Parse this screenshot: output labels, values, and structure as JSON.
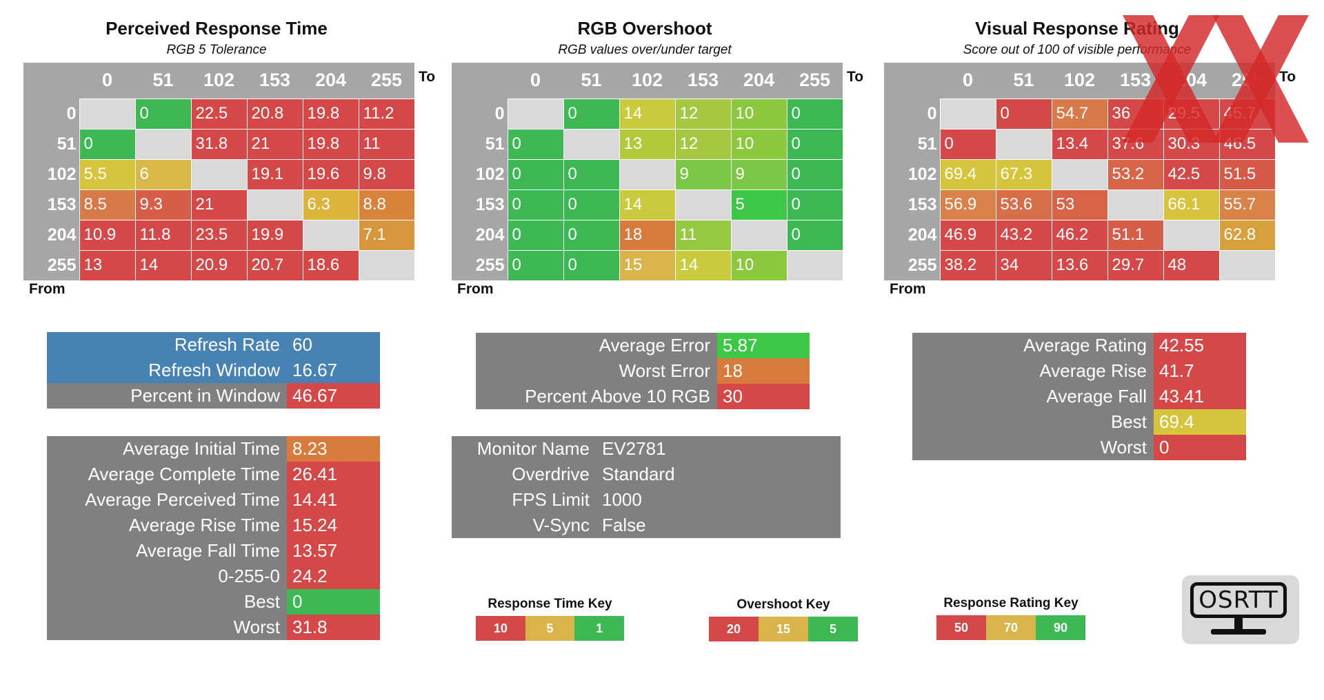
{
  "chart_data": [
    {
      "type": "heatmap",
      "title": "Perceived Response Time",
      "subtitle": "RGB 5 Tolerance",
      "to_label": "To",
      "from_label": "From",
      "levels": [
        "0",
        "51",
        "102",
        "153",
        "204",
        "255"
      ],
      "matrix": [
        [
          null,
          "0",
          "22.5",
          "20.8",
          "19.8",
          "11.2"
        ],
        [
          "0",
          null,
          "31.8",
          "21",
          "19.8",
          "11"
        ],
        [
          "5.5",
          "6",
          null,
          "19.1",
          "19.6",
          "9.8"
        ],
        [
          "8.5",
          "9.3",
          "21",
          null,
          "6.3",
          "8.8"
        ],
        [
          "10.9",
          "11.8",
          "23.5",
          "19.9",
          null,
          "7.1"
        ],
        [
          "13",
          "14",
          "20.9",
          "20.7",
          "18.6",
          null
        ]
      ],
      "colors": [
        [
          null,
          "#3cb955",
          "#d64848",
          "#d64848",
          "#d64848",
          "#d64848"
        ],
        [
          "#3cb955",
          null,
          "#d64848",
          "#d64848",
          "#d64848",
          "#d64848"
        ],
        [
          "#d6c43c",
          "#d8b848",
          null,
          "#d64848",
          "#d64848",
          "#d64848"
        ],
        [
          "#d87a48",
          "#d65e48",
          "#d64848",
          null,
          "#dcb43c",
          "#d8823c"
        ],
        [
          "#d64848",
          "#d64848",
          "#d64848",
          "#d64848",
          null,
          "#d8963c"
        ],
        [
          "#d64848",
          "#d64848",
          "#d64848",
          "#d64848",
          "#d64848",
          null
        ]
      ]
    },
    {
      "type": "heatmap",
      "title": "RGB Overshoot",
      "subtitle": "RGB values over/under target",
      "to_label": "To",
      "from_label": "From",
      "levels": [
        "0",
        "51",
        "102",
        "153",
        "204",
        "255"
      ],
      "matrix": [
        [
          null,
          "0",
          "14",
          "12",
          "10",
          "0"
        ],
        [
          "0",
          null,
          "13",
          "12",
          "10",
          "0"
        ],
        [
          "0",
          "0",
          null,
          "9",
          "9",
          "0"
        ],
        [
          "0",
          "0",
          "14",
          null,
          "5",
          "0"
        ],
        [
          "0",
          "0",
          "18",
          "11",
          null,
          "0"
        ],
        [
          "0",
          "0",
          "15",
          "14",
          "10",
          null
        ]
      ],
      "colors": [
        [
          null,
          "#3cb955",
          "#c8cc3c",
          "#a4c841",
          "#8ac83c",
          "#3cb955"
        ],
        [
          "#3cb955",
          null,
          "#b4c83c",
          "#a4c841",
          "#8ac83c",
          "#3cb955"
        ],
        [
          "#3cb955",
          "#3cb955",
          null,
          "#7cc846",
          "#7cc846",
          "#3cb955"
        ],
        [
          "#3cb955",
          "#3cb955",
          "#c8cc3c",
          null,
          "#3cc846",
          "#3cb955"
        ],
        [
          "#3cb955",
          "#3cb955",
          "#d87a3c",
          "#96c841",
          null,
          "#3cb955"
        ],
        [
          "#3cb955",
          "#3cb955",
          "#d8b44a",
          "#c8cc3c",
          "#8ac83c",
          null
        ]
      ]
    },
    {
      "type": "heatmap",
      "title": "Visual Response Rating",
      "subtitle": "Score out of 100 of visible performance",
      "to_label": "To",
      "from_label": "From",
      "levels": [
        "0",
        "51",
        "102",
        "153",
        "204",
        "255"
      ],
      "matrix": [
        [
          null,
          "0",
          "54.7",
          "36",
          "29.5",
          "45.7"
        ],
        [
          "0",
          null,
          "13.4",
          "37.6",
          "30.3",
          "46.5"
        ],
        [
          "69.4",
          "67.3",
          null,
          "53.2",
          "42.5",
          "51.5"
        ],
        [
          "56.9",
          "53.6",
          "53",
          null,
          "66.1",
          "55.7"
        ],
        [
          "46.9",
          "43.2",
          "46.2",
          "51.1",
          null,
          "62.8"
        ],
        [
          "38.2",
          "34",
          "13.6",
          "29.7",
          "48",
          null
        ]
      ],
      "colors": [
        [
          null,
          "#d64848",
          "#d87a48",
          "#d64848",
          "#d64848",
          "#d64848"
        ],
        [
          "#d64848",
          null,
          "#d64848",
          "#d64848",
          "#d64848",
          "#d64848"
        ],
        [
          "#d6c43c",
          "#d6c43c",
          null,
          "#d86448",
          "#d64848",
          "#d65a48"
        ],
        [
          "#d8824a",
          "#d86e48",
          "#d86448",
          null,
          "#d8c43c",
          "#d88248"
        ],
        [
          "#d64848",
          "#d64848",
          "#d64848",
          "#d65e48",
          null,
          "#d8a03c"
        ],
        [
          "#d64848",
          "#d64848",
          "#d64848",
          "#d64848",
          "#d64848",
          null
        ]
      ]
    }
  ],
  "refresh": {
    "rows": [
      {
        "label": "Refresh Rate",
        "value": "60",
        "label_color": "#4682b4",
        "value_color": "#4682b4"
      },
      {
        "label": "Refresh Window",
        "value": "16.67",
        "label_color": "#4682b4",
        "value_color": "#4682b4"
      },
      {
        "label": "Percent in Window",
        "value": "46.67",
        "label_color": "#808080",
        "value_color": "#d64848"
      }
    ]
  },
  "response_stats": {
    "rows": [
      {
        "label": "Average Initial Time",
        "value": "8.23",
        "value_color": "#d87a3c"
      },
      {
        "label": "Average Complete Time",
        "value": "26.41",
        "value_color": "#d64848"
      },
      {
        "label": "Average Perceived Time",
        "value": "14.41",
        "value_color": "#d64848"
      },
      {
        "label": "Average Rise Time",
        "value": "15.24",
        "value_color": "#d64848"
      },
      {
        "label": "Average Fall Time",
        "value": "13.57",
        "value_color": "#d64848"
      },
      {
        "label": "0-255-0",
        "value": "24.2",
        "value_color": "#d64848"
      },
      {
        "label": "Best",
        "value": "0",
        "value_color": "#3cb955"
      },
      {
        "label": "Worst",
        "value": "31.8",
        "value_color": "#d64848"
      }
    ]
  },
  "error_stats": {
    "rows": [
      {
        "label": "Average Error",
        "value": "5.87",
        "value_color": "#3cc846"
      },
      {
        "label": "Worst Error",
        "value": "18",
        "value_color": "#d87a3c"
      },
      {
        "label": "Percent Above 10 RGB",
        "value": "30",
        "value_color": "#d64848"
      }
    ]
  },
  "monitor": {
    "rows": [
      {
        "label": "Monitor Name",
        "value": "EV2781"
      },
      {
        "label": "Overdrive",
        "value": "Standard"
      },
      {
        "label": "FPS Limit",
        "value": "1000"
      },
      {
        "label": "V-Sync",
        "value": "False"
      }
    ]
  },
  "rating_stats": {
    "rows": [
      {
        "label": "Average Rating",
        "value": "42.55",
        "value_color": "#d64848"
      },
      {
        "label": "Average Rise",
        "value": "41.7",
        "value_color": "#d64848"
      },
      {
        "label": "Average Fall",
        "value": "43.41",
        "value_color": "#d64848"
      },
      {
        "label": "Best",
        "value": "69.4",
        "value_color": "#d6c43c"
      },
      {
        "label": "Worst",
        "value": "0",
        "value_color": "#d64848"
      }
    ]
  },
  "keys": [
    {
      "title": "Response Time Key",
      "items": [
        {
          "label": "10",
          "color": "#d64848"
        },
        {
          "label": "5",
          "color": "#d8b44a"
        },
        {
          "label": "1",
          "color": "#3cb955"
        }
      ]
    },
    {
      "title": "Overshoot Key",
      "items": [
        {
          "label": "20",
          "color": "#d64848"
        },
        {
          "label": "15",
          "color": "#d8b44a"
        },
        {
          "label": "5",
          "color": "#3cb955"
        }
      ]
    },
    {
      "title": "Response Rating Key",
      "items": [
        {
          "label": "50",
          "color": "#d64848"
        },
        {
          "label": "70",
          "color": "#d8b44a"
        },
        {
          "label": "90",
          "color": "#3cb955"
        }
      ]
    }
  ],
  "logo": {
    "text": "OSRTT"
  },
  "colors": {
    "header_gray": "#a6a6a6",
    "diag_gray": "#d9d9d9",
    "label_gray": "#808080",
    "watermark_red": "#d42828"
  }
}
